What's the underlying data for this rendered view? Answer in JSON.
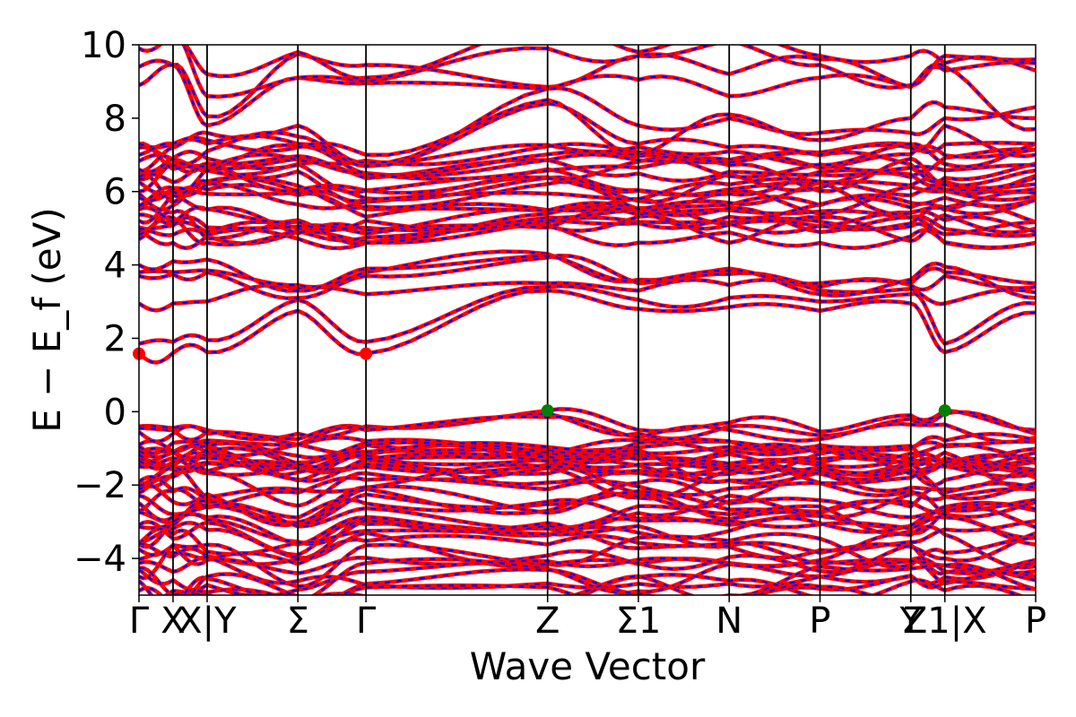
{
  "chart_data": {
    "type": "line",
    "xlabel": "Wave Vector",
    "ylabel": "E − E_f (eV)",
    "ylim": [
      -5,
      10
    ],
    "y_ticks": [
      -4,
      -2,
      0,
      2,
      4,
      6,
      8,
      10
    ],
    "grid": false,
    "legend": "none",
    "kpath": [
      {
        "label": "Γ",
        "x": 0.0
      },
      {
        "label": "X",
        "x": 0.6
      },
      {
        "label": "X|Y",
        "x": 1.2
      },
      {
        "label": "Σ",
        "x": 2.8
      },
      {
        "label": "Γ",
        "x": 4.0
      },
      {
        "label": "Z",
        "x": 7.2
      },
      {
        "label": "Σ1",
        "x": 8.8
      },
      {
        "label": "N",
        "x": 10.4
      },
      {
        "label": "P",
        "x": 12.0
      },
      {
        "label": "Y",
        "x": 13.6
      },
      {
        "label": "Z1|X",
        "x": 14.2
      },
      {
        "label": "P",
        "x": 15.8
      }
    ],
    "series": [
      {
        "color": "#ff0000",
        "style": "solid",
        "role": "band"
      },
      {
        "color": "#0000ff",
        "style": "dashed",
        "role": "band"
      }
    ],
    "band_extrema": [
      {
        "kind": "CBM",
        "x": 0.0,
        "y": 1.58,
        "color": "#ff0000"
      },
      {
        "kind": "CBM",
        "x": 4.0,
        "y": 1.58,
        "color": "#ff0000"
      },
      {
        "kind": "VBM",
        "x": 7.2,
        "y": 0.03,
        "color": "#008000"
      },
      {
        "kind": "VBM",
        "x": 14.2,
        "y": 0.03,
        "color": "#008000"
      }
    ],
    "band_groups": [
      {
        "name": "conduction-a",
        "count": 6,
        "ymin": 1.58,
        "ymax": 3.9
      },
      {
        "name": "conduction-b",
        "count": 22,
        "ymin": 4.7,
        "ymax": 7.2
      },
      {
        "name": "conduction-c",
        "count": 7,
        "ymin": 7.6,
        "ymax": 10.0
      },
      {
        "name": "valence-a",
        "count": 10,
        "ymin": -0.55,
        "ymax": 0.03
      },
      {
        "name": "valence-b",
        "count": 30,
        "ymin": -5.0,
        "ymax": -0.9
      }
    ]
  }
}
